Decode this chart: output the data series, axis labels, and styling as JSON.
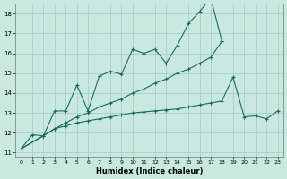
{
  "bg_color": "#c8e8e0",
  "grid_color": "#aacccc",
  "line_color": "#1a6b5a",
  "xlabel": "Humidex (Indice chaleur)",
  "xlim": [
    -0.5,
    23.5
  ],
  "ylim": [
    10.8,
    18.5
  ],
  "xticks": [
    0,
    1,
    2,
    3,
    4,
    5,
    6,
    7,
    8,
    9,
    10,
    11,
    12,
    13,
    14,
    15,
    16,
    17,
    18,
    19,
    20,
    21,
    22,
    23
  ],
  "yticks": [
    11,
    12,
    13,
    14,
    15,
    16,
    17,
    18
  ],
  "series": [
    {
      "x": [
        0,
        1,
        2,
        3,
        4,
        5,
        6,
        7,
        8,
        9,
        10,
        11,
        12,
        13,
        14,
        15,
        16,
        17,
        18
      ],
      "y": [
        11.2,
        11.9,
        11.85,
        13.1,
        13.1,
        14.4,
        13.1,
        14.85,
        15.1,
        14.95,
        16.2,
        16.0,
        16.2,
        15.5,
        16.4,
        17.5,
        18.1,
        18.8,
        16.6
      ]
    },
    {
      "x": [
        0,
        2,
        3,
        4,
        5,
        6,
        7,
        8,
        9,
        10,
        11,
        12,
        13,
        14,
        15,
        16,
        17,
        18
      ],
      "y": [
        11.2,
        11.85,
        12.2,
        12.5,
        12.8,
        13.0,
        13.3,
        13.5,
        13.7,
        14.0,
        14.2,
        14.5,
        14.7,
        15.0,
        15.2,
        15.5,
        15.8,
        16.6
      ]
    },
    {
      "x": [
        0,
        2,
        3,
        4,
        5,
        6,
        7,
        8,
        9,
        10,
        11,
        12,
        13,
        14,
        15,
        16,
        17,
        18,
        19,
        20,
        21,
        22,
        23
      ],
      "y": [
        11.2,
        11.85,
        12.2,
        12.35,
        12.5,
        12.6,
        12.7,
        12.8,
        12.9,
        13.0,
        13.05,
        13.1,
        13.15,
        13.2,
        13.3,
        13.4,
        13.5,
        13.6,
        14.8,
        12.8,
        12.85,
        12.7,
        13.1
      ]
    }
  ]
}
